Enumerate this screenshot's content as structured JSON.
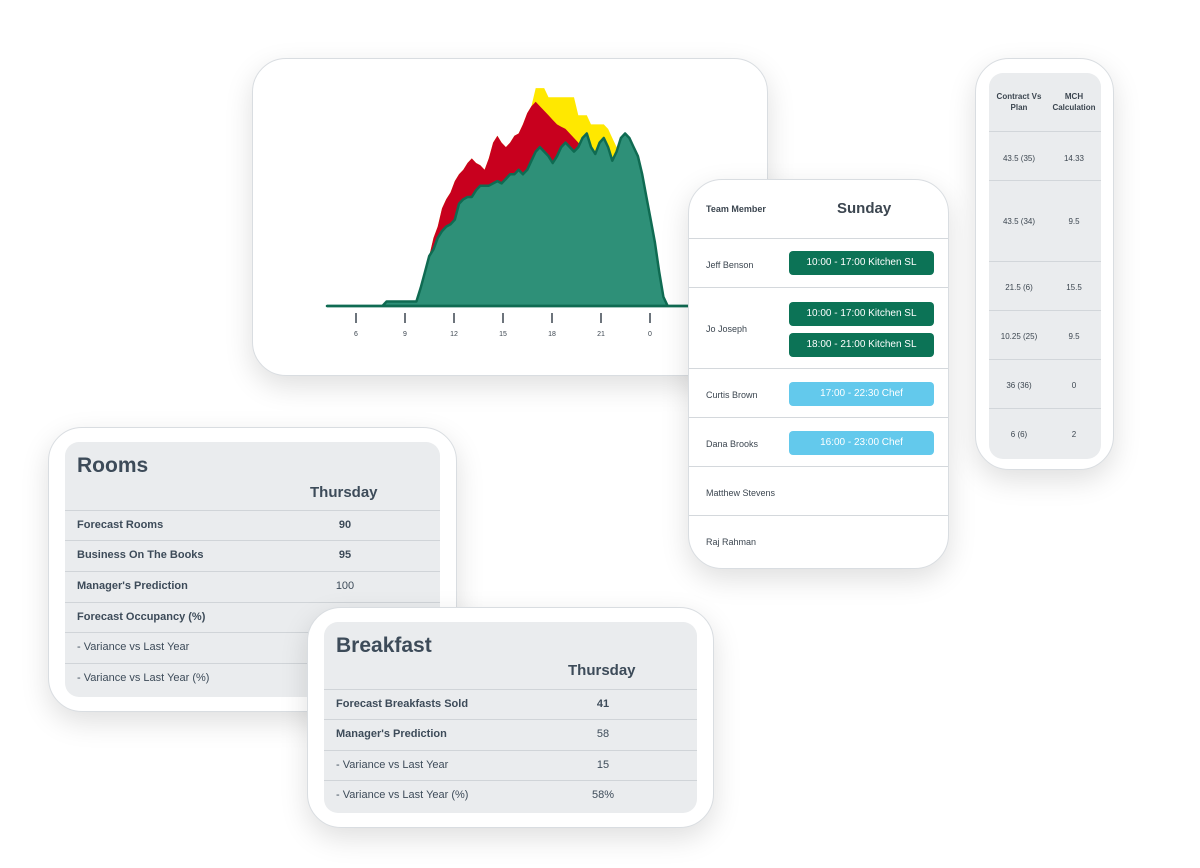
{
  "chart_data": {
    "type": "area",
    "x_ticks": [
      "6",
      "9",
      "12",
      "15",
      "18",
      "21",
      "0"
    ],
    "series": [
      {
        "color": "#2e9078",
        "values": [
          0,
          0,
          0,
          0,
          0,
          0,
          0,
          0,
          0,
          0,
          0,
          0,
          0,
          0,
          2,
          2,
          2,
          2,
          2,
          2,
          2,
          2,
          8,
          15,
          22,
          25,
          30,
          33,
          35,
          36,
          38,
          45,
          47,
          48,
          48,
          51,
          53,
          53,
          53,
          54,
          55,
          54,
          56,
          58,
          58,
          60,
          58,
          60,
          64,
          68,
          70,
          68,
          66,
          63,
          66,
          70,
          72,
          70,
          68,
          70,
          74,
          76,
          70,
          67,
          72,
          74,
          70,
          64,
          68,
          74,
          76,
          74,
          70,
          66,
          58,
          48,
          38,
          28,
          15,
          4,
          0,
          0,
          0,
          0,
          0,
          0
        ]
      },
      {
        "color": "#c8001e",
        "values": [
          0,
          0,
          0,
          0,
          0,
          0,
          0,
          0,
          0,
          0,
          0,
          0,
          0,
          0,
          2,
          2,
          2,
          2,
          2,
          2,
          2,
          2,
          8,
          15,
          22,
          30,
          35,
          43,
          47,
          50,
          55,
          58,
          60,
          63,
          65,
          63,
          62,
          60,
          65,
          72,
          75,
          72,
          70,
          72,
          75,
          76,
          80,
          85,
          88,
          90,
          88,
          86,
          84,
          82,
          80,
          79,
          78,
          76,
          74,
          72,
          70,
          68,
          66,
          64,
          62,
          60,
          58,
          56,
          54,
          52,
          48,
          44,
          40,
          36,
          32,
          28,
          20,
          14,
          8,
          4,
          0,
          0,
          0,
          0,
          0,
          0
        ]
      },
      {
        "color": "#ffe800",
        "values": [
          0,
          0,
          0,
          0,
          0,
          0,
          0,
          0,
          0,
          0,
          0,
          0,
          0,
          0,
          2,
          2,
          2,
          2,
          2,
          2,
          2,
          2,
          8,
          15,
          22,
          30,
          35,
          43,
          47,
          50,
          55,
          58,
          60,
          63,
          65,
          63,
          62,
          60,
          65,
          72,
          75,
          72,
          70,
          72,
          75,
          76,
          80,
          85,
          88,
          96,
          96,
          96,
          92,
          92,
          92,
          92,
          92,
          92,
          92,
          84,
          84,
          84,
          80,
          80,
          80,
          80,
          78,
          74,
          70,
          66,
          60,
          54,
          46,
          38,
          30,
          22,
          15,
          8,
          4,
          2,
          0,
          0,
          0,
          0,
          0,
          0
        ]
      }
    ]
  },
  "rota": {
    "header_label": "Team Member",
    "day": "Sunday",
    "rows": [
      {
        "name": "Jeff Benson",
        "shifts": [
          "10:00 - 17:00 Kitchen SL"
        ]
      },
      {
        "name": "Jo Joseph",
        "shifts": [
          "10:00 - 17:00 Kitchen SL",
          "18:00 - 21:00 Kitchen SL"
        ]
      },
      {
        "name": "Curtis Brown",
        "shifts": [
          "17:00 - 22:30 Chef"
        ]
      },
      {
        "name": "Dana Brooks",
        "shifts": [
          "16:00 - 23:00 Chef"
        ]
      },
      {
        "name": "Matthew Stevens",
        "shifts": []
      },
      {
        "name": "Raj Rahman",
        "shifts": []
      }
    ]
  },
  "contract": {
    "col1": "Contract Vs Plan",
    "col2": "MCH Calculation",
    "rows": [
      [
        "43.5 (35)",
        "14.33"
      ],
      [
        "43.5 (34)",
        "9.5"
      ],
      [
        "21.5 (6)",
        "15.5"
      ],
      [
        "10.25 (25)",
        "9.5"
      ],
      [
        "36 (36)",
        "0"
      ],
      [
        "6 (6)",
        "2"
      ]
    ]
  },
  "rooms": {
    "title": "Rooms",
    "day": "Thursday",
    "rows": [
      {
        "label": "Forecast Rooms",
        "value": "90"
      },
      {
        "label": "Business On The Books",
        "value": "95"
      },
      {
        "label": "Manager's Prediction",
        "value": "100"
      },
      {
        "label": "Forecast Occupancy (%)",
        "value": ""
      },
      {
        "label": "- Variance vs Last Year",
        "value": ""
      },
      {
        "label": "- Variance vs Last Year (%)",
        "value": ""
      }
    ]
  },
  "breakfast": {
    "title": "Breakfast",
    "day": "Thursday",
    "rows": [
      {
        "label": "Forecast Breakfasts Sold",
        "value": "41"
      },
      {
        "label": "Manager's Prediction",
        "value": "58"
      },
      {
        "label": "- Variance vs Last Year",
        "value": "15"
      },
      {
        "label": "- Variance vs Last Year (%)",
        "value": "58%"
      }
    ]
  }
}
